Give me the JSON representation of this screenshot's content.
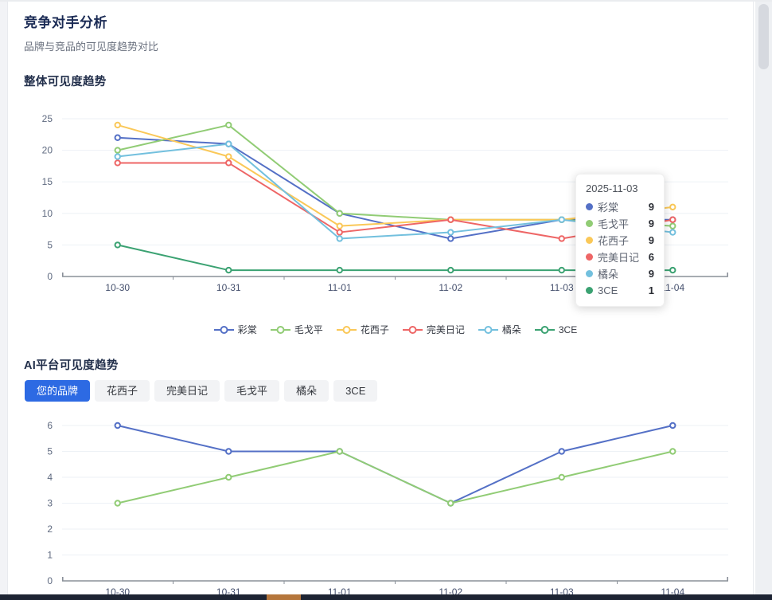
{
  "page": {
    "title": "竞争对手分析",
    "subtitle": "品牌与竞品的可见度趋势对比"
  },
  "overall_section": {
    "heading": "整体可见度趋势"
  },
  "platform_section": {
    "heading": "AI平台可见度趋势",
    "tabs": [
      {
        "label": "您的品牌",
        "active": true
      },
      {
        "label": "花西子",
        "active": false
      },
      {
        "label": "完美日记",
        "active": false
      },
      {
        "label": "毛戈平",
        "active": false
      },
      {
        "label": "橘朵",
        "active": false
      },
      {
        "label": "3CE",
        "active": false
      }
    ]
  },
  "tooltip": {
    "title": "2025-11-03",
    "rows": [
      {
        "name": "彩棠",
        "value": "9",
        "color": "#5470c6"
      },
      {
        "name": "毛戈平",
        "value": "9",
        "color": "#91cc75"
      },
      {
        "name": "花西子",
        "value": "9",
        "color": "#fac858"
      },
      {
        "name": "完美日记",
        "value": "6",
        "color": "#ee6666"
      },
      {
        "name": "橘朵",
        "value": "9",
        "color": "#73c0de"
      },
      {
        "name": "3CE",
        "value": "1",
        "color": "#3ba272"
      }
    ]
  },
  "chart_data": [
    {
      "type": "line",
      "title": "整体可见度趋势",
      "x": [
        "10-30",
        "10-31",
        "11-01",
        "11-02",
        "11-03",
        "11-04"
      ],
      "series": [
        {
          "name": "彩棠",
          "color": "#5470c6",
          "values": [
            22,
            21,
            10,
            6,
            9,
            9
          ]
        },
        {
          "name": "毛戈平",
          "color": "#91cc75",
          "values": [
            20,
            24,
            10,
            9,
            9,
            8
          ]
        },
        {
          "name": "花西子",
          "color": "#fac858",
          "values": [
            24,
            19,
            8,
            9,
            9,
            11
          ]
        },
        {
          "name": "完美日记",
          "color": "#ee6666",
          "values": [
            18,
            18,
            7,
            9,
            6,
            9
          ]
        },
        {
          "name": "橘朵",
          "color": "#73c0de",
          "values": [
            19,
            21,
            6,
            7,
            9,
            7
          ]
        },
        {
          "name": "3CE",
          "color": "#3ba272",
          "values": [
            5,
            1,
            1,
            1,
            1,
            1
          ]
        }
      ],
      "ylim": [
        0,
        25
      ],
      "yticks": [
        0,
        5,
        10,
        15,
        20,
        25
      ],
      "grid": true,
      "legend_position": "bottom"
    },
    {
      "type": "line",
      "title": "AI平台可见度趋势",
      "x": [
        "10-30",
        "10-31",
        "11-01",
        "11-02",
        "11-03",
        "11-04"
      ],
      "series": [
        {
          "name": "您的品牌",
          "color": "#5470c6",
          "values": [
            6,
            5,
            5,
            3,
            5,
            6
          ]
        },
        {
          "name": "毛戈平",
          "color": "#91cc75",
          "values": [
            3,
            4,
            5,
            3,
            4,
            5
          ]
        }
      ],
      "ylim": [
        0,
        6
      ],
      "yticks": [
        0,
        1,
        2,
        3,
        4,
        5,
        6
      ],
      "grid": true,
      "legend_position": "none"
    }
  ],
  "colors": {
    "accent_tab": "#2d6ae3",
    "axis_line": "#8a9099",
    "grid_line": "#edf1f6",
    "axis_label": "#5f6a80",
    "date_label": "#46516e",
    "footer_bar": "#1d2433",
    "footer_accent": "#b5763c"
  }
}
